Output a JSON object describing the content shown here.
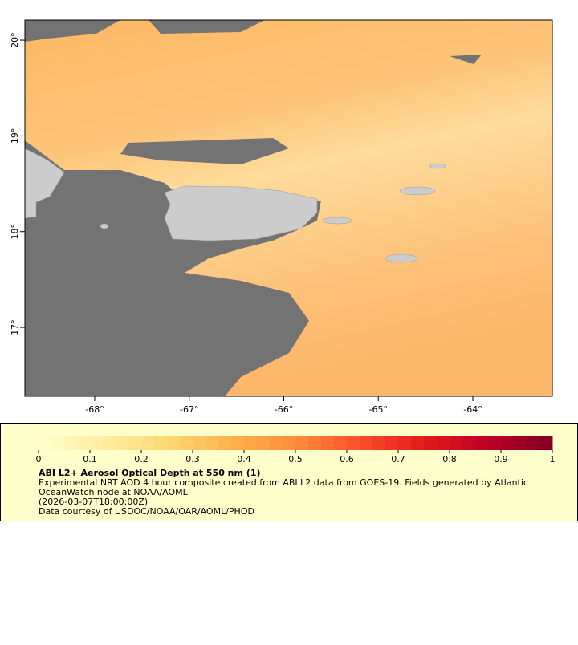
{
  "chart_data": {
    "type": "map",
    "xlim": [
      -68.739,
      -63.159
    ],
    "ylim": [
      16.28,
      20.21
    ],
    "xticks": [
      {
        "value": -68,
        "label": "-68°"
      },
      {
        "value": -67,
        "label": "-67°"
      },
      {
        "value": -66,
        "label": "-66°"
      },
      {
        "value": -65,
        "label": "-65°"
      },
      {
        "value": -64,
        "label": "-64°"
      }
    ],
    "yticks": [
      {
        "value": 17,
        "label": "17°"
      },
      {
        "value": 18,
        "label": "18°"
      },
      {
        "value": 19,
        "label": "19°"
      },
      {
        "value": 20,
        "label": "20°"
      }
    ],
    "colorbar": {
      "range": [
        0,
        1
      ],
      "ticks": [
        0,
        0.1,
        0.2,
        0.3,
        0.4,
        0.5,
        0.6,
        0.7,
        0.8,
        0.9,
        1
      ],
      "colors": [
        "#ffffcc",
        "#ffeda0",
        "#fed976",
        "#feb24c",
        "#fd8d3c",
        "#fc4e2a",
        "#e31a1c",
        "#bd0026",
        "#800026"
      ]
    },
    "title": "ABI L2+ Aerosol Optical Depth at 550 nm (1)",
    "description": [
      "Experimental NRT AOD 4 hour composite created from ABI L2 data from GOES-19. Fields generated by Atlantic",
      "OceanWatch node at NOAA/AOML",
      "(2026-03-07T18:00:00Z)",
      "Data courtesy of USDOC/NOAA/OAR/AOML/PHOD"
    ]
  }
}
